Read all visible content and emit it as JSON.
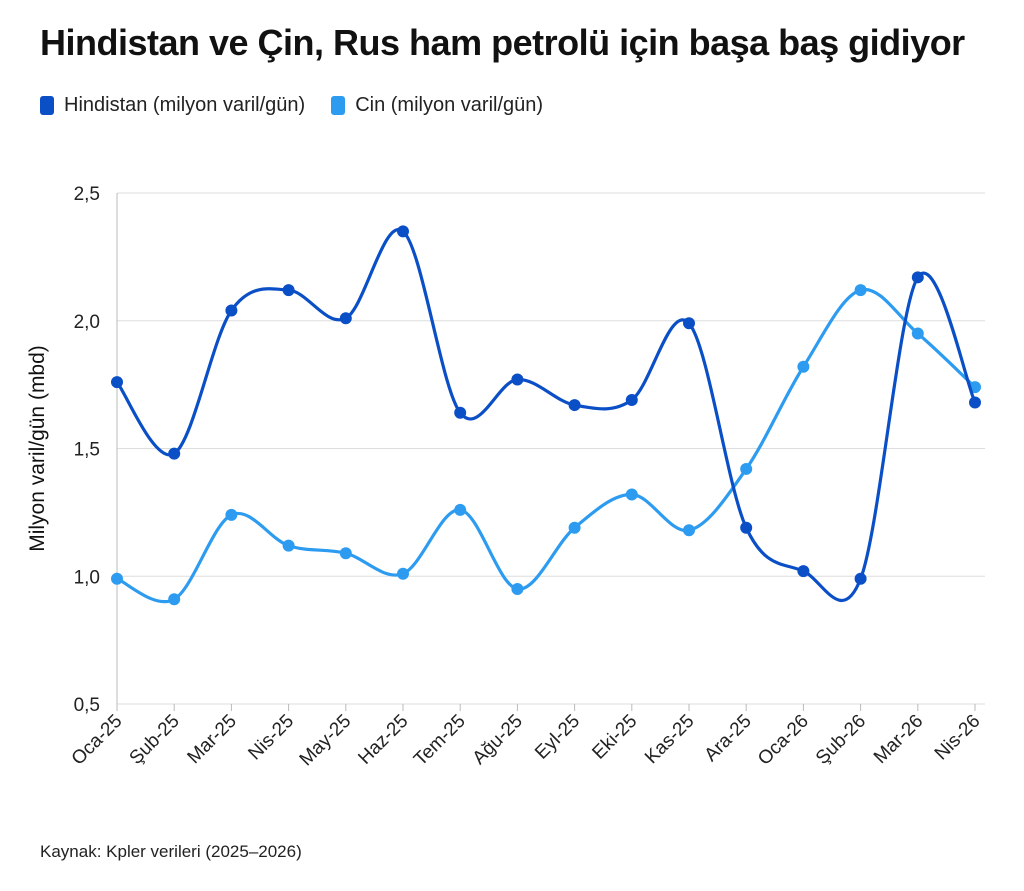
{
  "title": "Hindistan ve Çin, Rus ham petrolü için başa baş gidiyor",
  "source": "Kaynak: Kpler verileri (2025–2026)",
  "colors": {
    "india": "#0b4fc7",
    "china": "#2d9cf0",
    "grid": "#dddddd",
    "axis": "#bbbbbb"
  },
  "chart_data": {
    "type": "line",
    "title": "Hindistan ve Çin, Rus ham petrolü için başa baş gidiyor",
    "xlabel": "",
    "ylabel": "Milyon varil/gün (mbd)",
    "ylim": [
      0.5,
      2.5
    ],
    "yticks": [
      "0,5",
      "1,0",
      "1,5",
      "2,0",
      "2,5"
    ],
    "ytick_values": [
      0.5,
      1.0,
      1.5,
      2.0,
      2.5
    ],
    "grid": true,
    "legend_position": "top-left",
    "categories": [
      "Oca-25",
      "Şub-25",
      "Mar-25",
      "Nis-25",
      "May-25",
      "Haz-25",
      "Tem-25",
      "Ağu-25",
      "Eyl-25",
      "Eki-25",
      "Kas-25",
      "Ara-25",
      "Oca-26",
      "Şub-26",
      "Mar-26",
      "Nis-26"
    ],
    "series": [
      {
        "name": "Hindistan (milyon varil/gün)",
        "color": "#0b4fc7",
        "values": [
          1.76,
          1.48,
          2.04,
          2.12,
          2.01,
          2.35,
          1.64,
          1.77,
          1.67,
          1.69,
          1.99,
          1.19,
          1.02,
          0.99,
          2.17,
          1.68
        ]
      },
      {
        "name": "Cin (milyon varil/gün)",
        "color": "#2d9cf0",
        "values": [
          0.99,
          0.91,
          1.24,
          1.12,
          1.09,
          1.01,
          1.26,
          0.95,
          1.19,
          1.32,
          1.18,
          1.42,
          1.82,
          2.12,
          1.95,
          1.74
        ]
      }
    ]
  }
}
